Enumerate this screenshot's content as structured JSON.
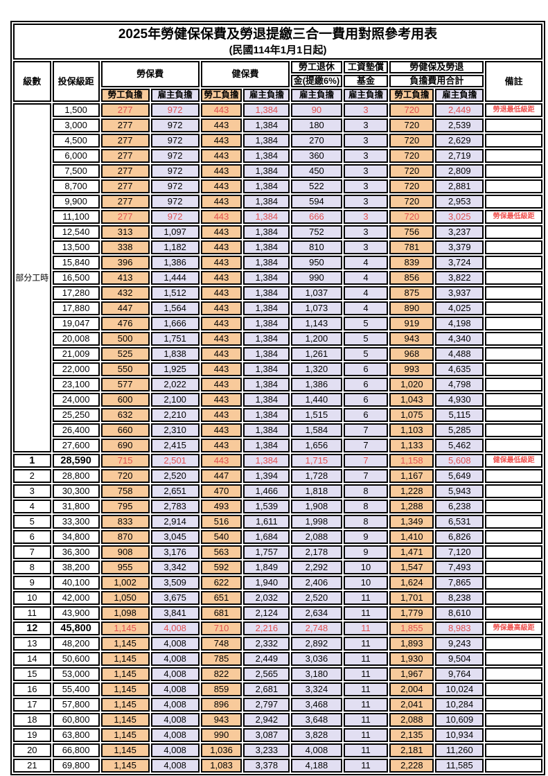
{
  "title": "2025年勞健保保費及勞退提繳三合一費用對照參考用表",
  "subtitle": "(民國114年1月1日起)",
  "colors": {
    "employee_column_bg": "#f8ca9b",
    "employer_column_bg": "#e2dff2",
    "highlight_text": "#e05252",
    "border": "#000000",
    "page_bg": "#ffffff"
  },
  "header": {
    "level": "級數",
    "bracket": "投保級距",
    "labor_insurance": "勞保費",
    "health_insurance": "健保費",
    "pension_line1": "勞工退休",
    "pension_line2": "金(提繳6%)",
    "wage_fund_line1": "工資墊償",
    "wage_fund_line2": "基金",
    "total_line1": "勞健保及勞退",
    "total_line2": "負擔費用合計",
    "remark": "備註",
    "employee": "勞工負擔",
    "employer": "雇主負擔"
  },
  "part_time_label": "部分工時",
  "part_time_rowspan": 23,
  "rows": [
    {
      "level": "",
      "bracket": "1,500",
      "values": [
        "277",
        "972",
        "443",
        "1,384",
        "90",
        "3",
        "720",
        "2,449"
      ],
      "note": "勞退最低級距",
      "highlight": true,
      "emph": false
    },
    {
      "level": "",
      "bracket": "3,000",
      "values": [
        "277",
        "972",
        "443",
        "1,384",
        "180",
        "3",
        "720",
        "2,539"
      ],
      "note": "",
      "highlight": false,
      "emph": false
    },
    {
      "level": "",
      "bracket": "4,500",
      "values": [
        "277",
        "972",
        "443",
        "1,384",
        "270",
        "3",
        "720",
        "2,629"
      ],
      "note": "",
      "highlight": false,
      "emph": false
    },
    {
      "level": "",
      "bracket": "6,000",
      "values": [
        "277",
        "972",
        "443",
        "1,384",
        "360",
        "3",
        "720",
        "2,719"
      ],
      "note": "",
      "highlight": false,
      "emph": false
    },
    {
      "level": "",
      "bracket": "7,500",
      "values": [
        "277",
        "972",
        "443",
        "1,384",
        "450",
        "3",
        "720",
        "2,809"
      ],
      "note": "",
      "highlight": false,
      "emph": false
    },
    {
      "level": "",
      "bracket": "8,700",
      "values": [
        "277",
        "972",
        "443",
        "1,384",
        "522",
        "3",
        "720",
        "2,881"
      ],
      "note": "",
      "highlight": false,
      "emph": false
    },
    {
      "level": "",
      "bracket": "9,900",
      "values": [
        "277",
        "972",
        "443",
        "1,384",
        "594",
        "3",
        "720",
        "2,953"
      ],
      "note": "",
      "highlight": false,
      "emph": false
    },
    {
      "level": "",
      "bracket": "11,100",
      "values": [
        "277",
        "972",
        "443",
        "1,384",
        "666",
        "3",
        "720",
        "3,025"
      ],
      "note": "勞保最低級距",
      "highlight": true,
      "emph": false
    },
    {
      "level": "",
      "bracket": "12,540",
      "values": [
        "313",
        "1,097",
        "443",
        "1,384",
        "752",
        "3",
        "756",
        "3,237"
      ],
      "note": "",
      "highlight": false,
      "emph": false
    },
    {
      "level": "",
      "bracket": "13,500",
      "values": [
        "338",
        "1,182",
        "443",
        "1,384",
        "810",
        "3",
        "781",
        "3,379"
      ],
      "note": "",
      "highlight": false,
      "emph": false
    },
    {
      "level": "",
      "bracket": "15,840",
      "values": [
        "396",
        "1,386",
        "443",
        "1,384",
        "950",
        "4",
        "839",
        "3,724"
      ],
      "note": "",
      "highlight": false,
      "emph": false
    },
    {
      "level": "",
      "bracket": "16,500",
      "values": [
        "413",
        "1,444",
        "443",
        "1,384",
        "990",
        "4",
        "856",
        "3,822"
      ],
      "note": "",
      "highlight": false,
      "emph": false
    },
    {
      "level": "",
      "bracket": "17,280",
      "values": [
        "432",
        "1,512",
        "443",
        "1,384",
        "1,037",
        "4",
        "875",
        "3,937"
      ],
      "note": "",
      "highlight": false,
      "emph": false
    },
    {
      "level": "",
      "bracket": "17,880",
      "values": [
        "447",
        "1,564",
        "443",
        "1,384",
        "1,073",
        "4",
        "890",
        "4,025"
      ],
      "note": "",
      "highlight": false,
      "emph": false
    },
    {
      "level": "",
      "bracket": "19,047",
      "values": [
        "476",
        "1,666",
        "443",
        "1,384",
        "1,143",
        "5",
        "919",
        "4,198"
      ],
      "note": "",
      "highlight": false,
      "emph": false
    },
    {
      "level": "",
      "bracket": "20,008",
      "values": [
        "500",
        "1,751",
        "443",
        "1,384",
        "1,200",
        "5",
        "943",
        "4,340"
      ],
      "note": "",
      "highlight": false,
      "emph": false
    },
    {
      "level": "",
      "bracket": "21,009",
      "values": [
        "525",
        "1,838",
        "443",
        "1,384",
        "1,261",
        "5",
        "968",
        "4,488"
      ],
      "note": "",
      "highlight": false,
      "emph": false
    },
    {
      "level": "",
      "bracket": "22,000",
      "values": [
        "550",
        "1,925",
        "443",
        "1,384",
        "1,320",
        "6",
        "993",
        "4,635"
      ],
      "note": "",
      "highlight": false,
      "emph": false
    },
    {
      "level": "",
      "bracket": "23,100",
      "values": [
        "577",
        "2,022",
        "443",
        "1,384",
        "1,386",
        "6",
        "1,020",
        "4,798"
      ],
      "note": "",
      "highlight": false,
      "emph": false
    },
    {
      "level": "",
      "bracket": "24,000",
      "values": [
        "600",
        "2,100",
        "443",
        "1,384",
        "1,440",
        "6",
        "1,043",
        "4,930"
      ],
      "note": "",
      "highlight": false,
      "emph": false
    },
    {
      "level": "",
      "bracket": "25,250",
      "values": [
        "632",
        "2,210",
        "443",
        "1,384",
        "1,515",
        "6",
        "1,075",
        "5,115"
      ],
      "note": "",
      "highlight": false,
      "emph": false
    },
    {
      "level": "",
      "bracket": "26,400",
      "values": [
        "660",
        "2,310",
        "443",
        "1,384",
        "1,584",
        "7",
        "1,103",
        "5,285"
      ],
      "note": "",
      "highlight": false,
      "emph": false
    },
    {
      "level": "",
      "bracket": "27,600",
      "values": [
        "690",
        "2,415",
        "443",
        "1,384",
        "1,656",
        "7",
        "1,133",
        "5,462"
      ],
      "note": "",
      "highlight": false,
      "emph": false
    },
    {
      "level": "1",
      "bracket": "28,590",
      "values": [
        "715",
        "2,501",
        "443",
        "1,384",
        "1,715",
        "7",
        "1,158",
        "5,608"
      ],
      "note": "健保最低級距",
      "highlight": true,
      "emph": true
    },
    {
      "level": "2",
      "bracket": "28,800",
      "values": [
        "720",
        "2,520",
        "447",
        "1,394",
        "1,728",
        "7",
        "1,167",
        "5,649"
      ],
      "note": "",
      "highlight": false,
      "emph": false
    },
    {
      "level": "3",
      "bracket": "30,300",
      "values": [
        "758",
        "2,651",
        "470",
        "1,466",
        "1,818",
        "8",
        "1,228",
        "5,943"
      ],
      "note": "",
      "highlight": false,
      "emph": false
    },
    {
      "level": "4",
      "bracket": "31,800",
      "values": [
        "795",
        "2,783",
        "493",
        "1,539",
        "1,908",
        "8",
        "1,288",
        "6,238"
      ],
      "note": "",
      "highlight": false,
      "emph": false
    },
    {
      "level": "5",
      "bracket": "33,300",
      "values": [
        "833",
        "2,914",
        "516",
        "1,611",
        "1,998",
        "8",
        "1,349",
        "6,531"
      ],
      "note": "",
      "highlight": false,
      "emph": false
    },
    {
      "level": "6",
      "bracket": "34,800",
      "values": [
        "870",
        "3,045",
        "540",
        "1,684",
        "2,088",
        "9",
        "1,410",
        "6,826"
      ],
      "note": "",
      "highlight": false,
      "emph": false
    },
    {
      "level": "7",
      "bracket": "36,300",
      "values": [
        "908",
        "3,176",
        "563",
        "1,757",
        "2,178",
        "9",
        "1,471",
        "7,120"
      ],
      "note": "",
      "highlight": false,
      "emph": false
    },
    {
      "level": "8",
      "bracket": "38,200",
      "values": [
        "955",
        "3,342",
        "592",
        "1,849",
        "2,292",
        "10",
        "1,547",
        "7,493"
      ],
      "note": "",
      "highlight": false,
      "emph": false
    },
    {
      "level": "9",
      "bracket": "40,100",
      "values": [
        "1,002",
        "3,509",
        "622",
        "1,940",
        "2,406",
        "10",
        "1,624",
        "7,865"
      ],
      "note": "",
      "highlight": false,
      "emph": false
    },
    {
      "level": "10",
      "bracket": "42,000",
      "values": [
        "1,050",
        "3,675",
        "651",
        "2,032",
        "2,520",
        "11",
        "1,701",
        "8,238"
      ],
      "note": "",
      "highlight": false,
      "emph": false
    },
    {
      "level": "11",
      "bracket": "43,900",
      "values": [
        "1,098",
        "3,841",
        "681",
        "2,124",
        "2,634",
        "11",
        "1,779",
        "8,610"
      ],
      "note": "",
      "highlight": false,
      "emph": false
    },
    {
      "level": "12",
      "bracket": "45,800",
      "values": [
        "1,145",
        "4,008",
        "710",
        "2,216",
        "2,748",
        "11",
        "1,855",
        "8,983"
      ],
      "note": "勞保最高級距",
      "highlight": true,
      "emph": true
    },
    {
      "level": "13",
      "bracket": "48,200",
      "values": [
        "1,145",
        "4,008",
        "748",
        "2,332",
        "2,892",
        "11",
        "1,893",
        "9,243"
      ],
      "note": "",
      "highlight": false,
      "emph": false
    },
    {
      "level": "14",
      "bracket": "50,600",
      "values": [
        "1,145",
        "4,008",
        "785",
        "2,449",
        "3,036",
        "11",
        "1,930",
        "9,504"
      ],
      "note": "",
      "highlight": false,
      "emph": false
    },
    {
      "level": "15",
      "bracket": "53,000",
      "values": [
        "1,145",
        "4,008",
        "822",
        "2,565",
        "3,180",
        "11",
        "1,967",
        "9,764"
      ],
      "note": "",
      "highlight": false,
      "emph": false
    },
    {
      "level": "16",
      "bracket": "55,400",
      "values": [
        "1,145",
        "4,008",
        "859",
        "2,681",
        "3,324",
        "11",
        "2,004",
        "10,024"
      ],
      "note": "",
      "highlight": false,
      "emph": false
    },
    {
      "level": "17",
      "bracket": "57,800",
      "values": [
        "1,145",
        "4,008",
        "896",
        "2,797",
        "3,468",
        "11",
        "2,041",
        "10,284"
      ],
      "note": "",
      "highlight": false,
      "emph": false
    },
    {
      "level": "18",
      "bracket": "60,800",
      "values": [
        "1,145",
        "4,008",
        "943",
        "2,942",
        "3,648",
        "11",
        "2,088",
        "10,609"
      ],
      "note": "",
      "highlight": false,
      "emph": false
    },
    {
      "level": "19",
      "bracket": "63,800",
      "values": [
        "1,145",
        "4,008",
        "990",
        "3,087",
        "3,828",
        "11",
        "2,135",
        "10,934"
      ],
      "note": "",
      "highlight": false,
      "emph": false
    },
    {
      "level": "20",
      "bracket": "66,800",
      "values": [
        "1,145",
        "4,008",
        "1,036",
        "3,233",
        "4,008",
        "11",
        "2,181",
        "11,260"
      ],
      "note": "",
      "highlight": false,
      "emph": false
    },
    {
      "level": "21",
      "bracket": "69,800",
      "values": [
        "1,145",
        "4,008",
        "1,083",
        "3,378",
        "4,188",
        "11",
        "2,228",
        "11,585"
      ],
      "note": "",
      "highlight": false,
      "emph": false
    }
  ]
}
